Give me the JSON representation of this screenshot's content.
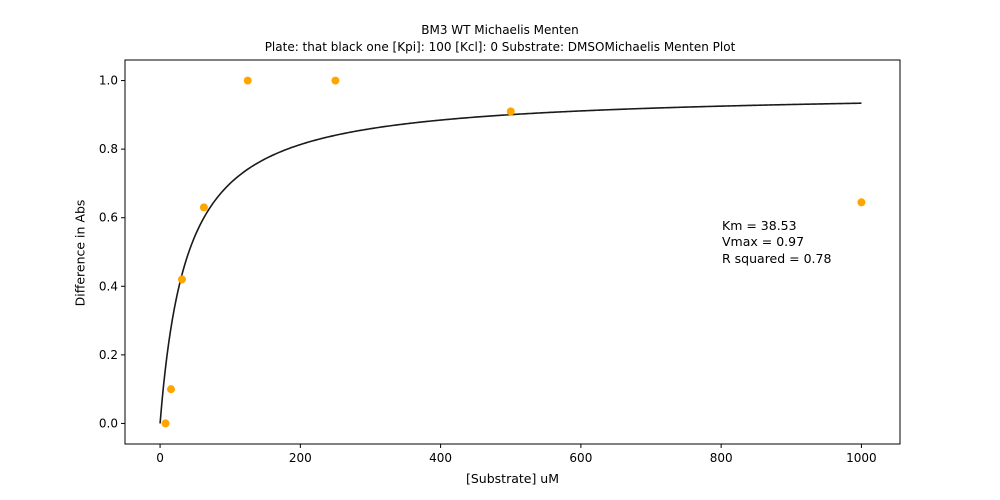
{
  "chart_data": {
    "type": "scatter",
    "title_line1": "BM3 WT Michaelis Menten",
    "title_line2": "Plate: that black one  [Kpi]: 100  [Kcl]: 0  Substrate: DMSOMichaelis Menten Plot",
    "xlabel": "[Substrate] uM",
    "ylabel": "Difference in Abs",
    "xlim": [
      -50,
      1055
    ],
    "ylim": [
      -0.06,
      1.06
    ],
    "xticks": [
      0,
      200,
      400,
      600,
      800,
      1000
    ],
    "yticks": [
      0.0,
      0.2,
      0.4,
      0.6,
      0.8,
      1.0
    ],
    "ytick_labels": [
      "0.0",
      "0.2",
      "0.4",
      "0.6",
      "0.8",
      "1.0"
    ],
    "grid": false,
    "series": [
      {
        "kind": "points",
        "color": "#ffa500",
        "x": [
          7.8,
          15.6,
          31.25,
          62.5,
          125,
          250,
          500,
          1000
        ],
        "y": [
          0.0,
          0.1,
          0.42,
          0.63,
          1.0,
          1.0,
          0.91,
          0.645
        ]
      },
      {
        "kind": "fit",
        "color": "#1a1a1a",
        "model": "michaelis-menten",
        "Km": 38.53,
        "Vmax": 0.97,
        "x_range": [
          0,
          1000
        ]
      }
    ],
    "annotations": [
      "Km = 38.53",
      "Vmax = 0.97",
      "R squared = 0.78"
    ]
  }
}
